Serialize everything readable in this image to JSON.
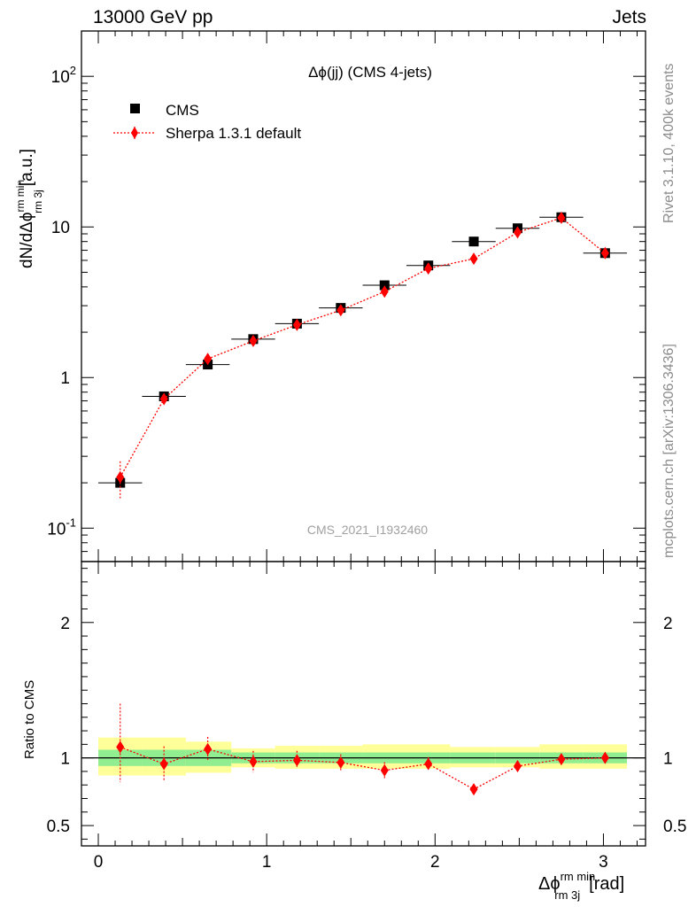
{
  "header": {
    "left_label": "13000 GeV pp",
    "right_label": "Jets"
  },
  "side_text": {
    "rivet": "Rivet 3.1.10,  400k events",
    "mcplots": "mcplots.cern.ch [arXiv:1306.3436]"
  },
  "chart_data": [
    {
      "type": "scatter",
      "title": "Δϕ(jj) (CMS 4-jets)",
      "watermark": "CMS_2021_I1932460",
      "ylabel": "dN/dΔϕ^{rm min}_{rm 3j} [a.u.]",
      "ylabel_main": "dN/dΔϕ",
      "ylabel_sup": "rm min",
      "ylabel_sub": "rm 3j",
      "ylabel_unit": "[a.u.]",
      "yscale": "log",
      "xlim": [
        -0.1,
        3.25
      ],
      "ylim": [
        0.06,
        200
      ],
      "ytick_labels": [
        "10^{-1}",
        "1",
        "10",
        "10^{2}"
      ],
      "legend_position": "top-left",
      "x": [
        0.13,
        0.39,
        0.65,
        0.92,
        1.18,
        1.44,
        1.7,
        1.96,
        2.23,
        2.49,
        2.75,
        3.01
      ],
      "x_errors": [
        0.13,
        0.13,
        0.13,
        0.13,
        0.13,
        0.13,
        0.13,
        0.13,
        0.13,
        0.13,
        0.13,
        0.13
      ],
      "series": [
        {
          "name": "CMS",
          "color": "#000000",
          "marker": "square",
          "values": [
            0.2,
            0.75,
            1.22,
            1.8,
            2.28,
            2.9,
            4.1,
            5.55,
            8.0,
            9.8,
            11.6,
            6.7
          ],
          "errors": [
            0.02,
            0.04,
            0.04,
            0.06,
            0.08,
            0.1,
            0.14,
            0.18,
            0.25,
            0.3,
            0.35,
            0.2
          ]
        },
        {
          "name": "Sherpa 1.3.1 default",
          "color": "#ff0000",
          "marker": "diamond",
          "line": "dotted",
          "values": [
            0.218,
            0.72,
            1.33,
            1.75,
            2.24,
            2.8,
            3.72,
            5.3,
            6.15,
            9.2,
            11.5,
            6.7
          ],
          "errors": [
            0.06,
            0.06,
            0.08,
            0.12,
            0.14,
            0.16,
            0.18,
            0.2,
            0.2,
            0.3,
            0.4,
            0.25
          ]
        }
      ]
    },
    {
      "type": "scatter",
      "xlabel": "Δϕ^{rm min}_{rm 3j} [rad]",
      "xlabel_main": "Δϕ",
      "xlabel_sup": "rm min",
      "xlabel_sub": "rm 3j",
      "xlabel_unit": "[rad]",
      "ylabel": "Ratio to CMS",
      "xlim": [
        -0.1,
        3.25
      ],
      "ylim": [
        0.35,
        2.45
      ],
      "xtick_labels": [
        "0",
        "1",
        "2",
        "3"
      ],
      "ytick_labels": [
        "0.5",
        "1",
        "2"
      ],
      "reference_line": 1.0,
      "bands": [
        {
          "name": "stat",
          "color": "#90ee90"
        },
        {
          "name": "total",
          "color": "#ffff99"
        }
      ],
      "band_edges": [
        0.0,
        0.26,
        0.52,
        0.79,
        1.05,
        1.31,
        1.57,
        1.83,
        2.09,
        2.36,
        2.62,
        2.88,
        3.14
      ],
      "band_inner": [
        [
          0.94,
          1.06
        ],
        [
          0.94,
          1.06
        ],
        [
          0.94,
          1.06
        ],
        [
          0.96,
          1.04
        ],
        [
          0.96,
          1.04
        ],
        [
          0.96,
          1.04
        ],
        [
          0.96,
          1.04
        ],
        [
          0.96,
          1.04
        ],
        [
          0.96,
          1.04
        ],
        [
          0.96,
          1.04
        ],
        [
          0.96,
          1.04
        ],
        [
          0.96,
          1.04
        ]
      ],
      "band_outer": [
        [
          0.87,
          1.15
        ],
        [
          0.87,
          1.15
        ],
        [
          0.89,
          1.12
        ],
        [
          0.93,
          1.07
        ],
        [
          0.92,
          1.09
        ],
        [
          0.92,
          1.09
        ],
        [
          0.92,
          1.1
        ],
        [
          0.92,
          1.1
        ],
        [
          0.93,
          1.08
        ],
        [
          0.93,
          1.08
        ],
        [
          0.92,
          1.1
        ],
        [
          0.92,
          1.1
        ]
      ],
      "x": [
        0.13,
        0.39,
        0.65,
        0.92,
        1.18,
        1.44,
        1.7,
        1.96,
        2.23,
        2.49,
        2.75,
        3.01
      ],
      "series": [
        {
          "name": "Sherpa 1.3.1 default",
          "color": "#ff0000",
          "marker": "diamond",
          "line": "dotted",
          "values": [
            1.08,
            0.955,
            1.065,
            0.972,
            0.982,
            0.966,
            0.908,
            0.955,
            0.768,
            0.939,
            0.99,
            1.0
          ],
          "err_lo": [
            0.26,
            0.13,
            0.08,
            0.08,
            0.06,
            0.06,
            0.06,
            0.05,
            0.04,
            0.04,
            0.04,
            0.04
          ],
          "err_hi": [
            0.32,
            0.13,
            0.09,
            0.08,
            0.07,
            0.06,
            0.06,
            0.05,
            0.04,
            0.04,
            0.04,
            0.04
          ]
        }
      ]
    }
  ]
}
